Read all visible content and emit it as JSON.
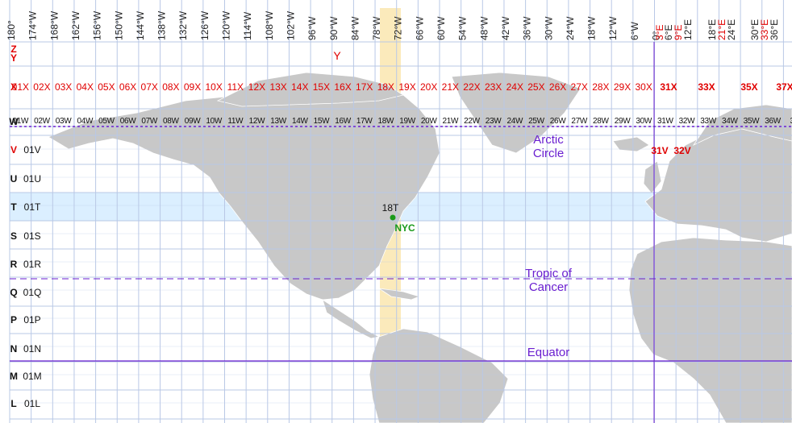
{
  "map": {
    "top_labels": [
      "180°",
      "174°W",
      "168°W",
      "162°W",
      "156°W",
      "150°W",
      "144°W",
      "138°W",
      "132°W",
      "126°W",
      "120°W",
      "114°W",
      "108°W",
      "102°W",
      "96°W",
      "90°W",
      "84°W",
      "78°W",
      "72°W",
      "66°W",
      "60°W",
      "54°W",
      "48°W",
      "42°W",
      "36°W",
      "30°W",
      "24°W",
      "18°W",
      "12°W",
      "6°W",
      "0°"
    ],
    "top_labels_east": [
      {
        "text": "3°E",
        "red": true
      },
      {
        "text": "6°E",
        "red": false
      },
      {
        "text": "9°E",
        "red": true
      },
      {
        "text": "12°E",
        "red": false
      },
      {
        "text": "18°E",
        "red": false
      },
      {
        "text": "21°E",
        "red": true
      },
      {
        "text": "24°E",
        "red": false
      },
      {
        "text": "30°E",
        "red": false
      },
      {
        "text": "33°E",
        "red": true
      },
      {
        "text": "36°E",
        "red": false
      }
    ],
    "row_letters": [
      {
        "letter": "Z",
        "red": true
      },
      {
        "letter": "Y",
        "red": true
      },
      {
        "letter": "X",
        "red": true
      },
      {
        "letter": "W",
        "red": false
      },
      {
        "letter": "V",
        "red": true
      },
      {
        "letter": "U",
        "red": false
      },
      {
        "letter": "T",
        "red": false
      },
      {
        "letter": "S",
        "red": false
      },
      {
        "letter": "R",
        "red": false
      },
      {
        "letter": "Q",
        "red": false
      },
      {
        "letter": "P",
        "red": false
      },
      {
        "letter": "N",
        "red": false
      },
      {
        "letter": "M",
        "red": false
      },
      {
        "letter": "L",
        "red": false
      }
    ],
    "y_zone_label": "Y",
    "x_row": [
      "01X",
      "02X",
      "03X",
      "04X",
      "05X",
      "06X",
      "07X",
      "08X",
      "09X",
      "10X",
      "11X",
      "12X",
      "13X",
      "14X",
      "15X",
      "16X",
      "17X",
      "18X",
      "19X",
      "20X",
      "21X",
      "22X",
      "23X",
      "24X",
      "25X",
      "26X",
      "27X",
      "28X",
      "29X",
      "30X"
    ],
    "x_row_east": [
      "31X",
      "33X",
      "35X",
      "37X"
    ],
    "w_row": [
      "01W",
      "02W",
      "03W",
      "04W",
      "05W",
      "06W",
      "07W",
      "08W",
      "09W",
      "10W",
      "11W",
      "12W",
      "13W",
      "14W",
      "15W",
      "16W",
      "17W",
      "18W",
      "19W",
      "20W",
      "21W",
      "22W",
      "23W",
      "24W",
      "25W",
      "26W",
      "27W",
      "28W",
      "29W",
      "30W",
      "31W",
      "32W",
      "33W",
      "34W",
      "35W",
      "36W",
      "37"
    ],
    "first_col_zones": [
      "01V",
      "01U",
      "01T",
      "01S",
      "01R",
      "01Q",
      "01P",
      "01N",
      "01M",
      "01L"
    ],
    "v_zones_east": [
      "31V",
      "32V"
    ],
    "nyc_zone": "18T",
    "nyc_label": "NYC",
    "arctic_circle": [
      "Arctic",
      "Circle"
    ],
    "tropic_of_cancer": [
      "Tropic of",
      "Cancer"
    ],
    "equator": "Equator",
    "colors": {
      "land": "#c8c8c8",
      "grid": "#b9c8e6",
      "highlight_band": "#dbefff",
      "zone18_column": "#fbe8b4",
      "reference_line": "#6a1fd0",
      "zone_red": "#e00000",
      "nyc_green": "#1a9a1a"
    }
  }
}
